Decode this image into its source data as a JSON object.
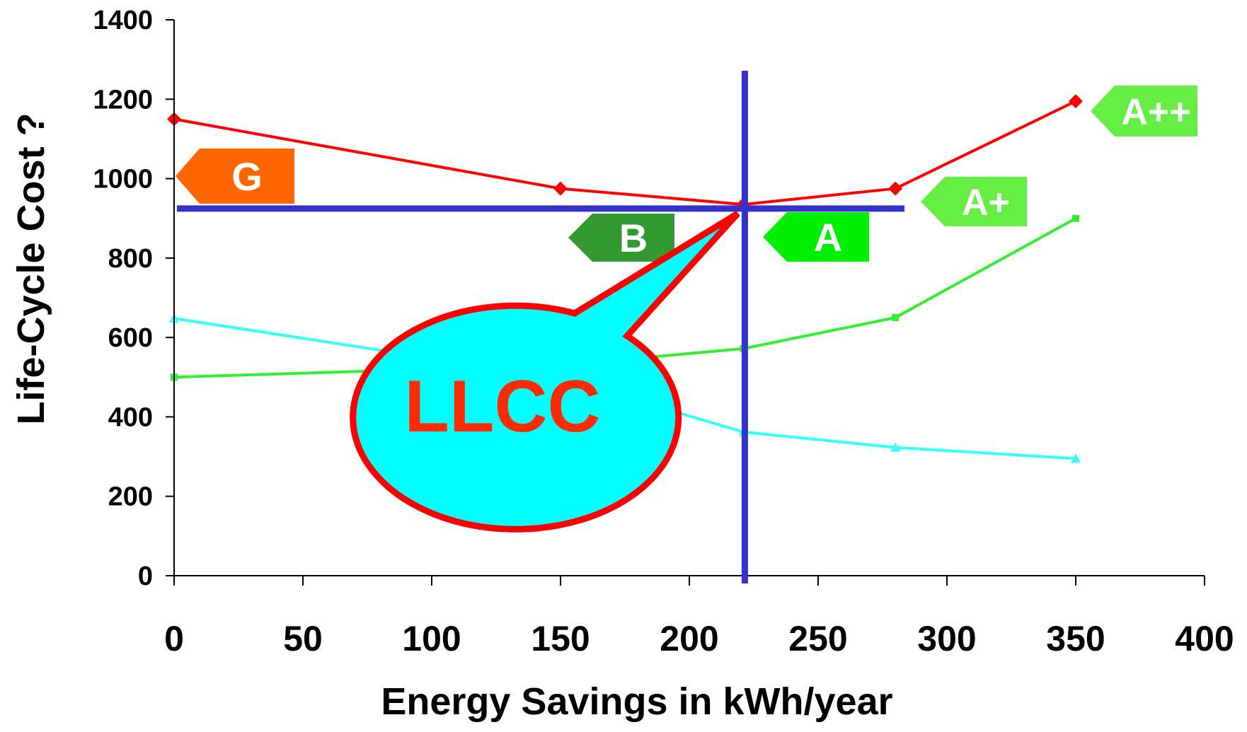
{
  "chart_data": {
    "type": "line",
    "xlabel": "Energy Savings in kWh/year",
    "ylabel": "Life-Cycle Cost ?",
    "xlim": [
      0,
      400
    ],
    "ylim": [
      0,
      1400
    ],
    "x_ticks": [
      0,
      50,
      100,
      150,
      200,
      250,
      300,
      350,
      400
    ],
    "y_ticks": [
      0,
      200,
      400,
      600,
      800,
      1000,
      1200,
      1400
    ],
    "grid": false,
    "legend": "none",
    "series": [
      {
        "color": "#ff0000",
        "marker": "diamond",
        "points": [
          [
            0,
            1150
          ],
          [
            150,
            975
          ],
          [
            221,
            935
          ],
          [
            280,
            975
          ],
          [
            350,
            1195
          ]
        ]
      },
      {
        "color": "#33ee33",
        "marker": "square",
        "points": [
          [
            0,
            500
          ],
          [
            150,
            530
          ],
          [
            221,
            572
          ],
          [
            280,
            650
          ],
          [
            350,
            900
          ]
        ]
      },
      {
        "color": "#33ffff",
        "marker": "triangle",
        "points": [
          [
            0,
            648
          ],
          [
            150,
            498
          ],
          [
            221,
            362
          ],
          [
            280,
            323
          ],
          [
            350,
            295
          ]
        ]
      }
    ],
    "annotations": {
      "llcc_point": {
        "x": 221,
        "y": 930,
        "color": "#3333cc"
      },
      "callout": {
        "text": "LLCC",
        "fill": "#00ffff",
        "stroke": "#ff0000",
        "text_color": "#ff2a00"
      },
      "energy_labels": [
        {
          "text": "G",
          "color": "#ff6600"
        },
        {
          "text": "B",
          "color": "#339933"
        },
        {
          "text": "A",
          "color": "#00ee00"
        },
        {
          "text": "A+",
          "color": "#66ee44"
        },
        {
          "text": "A++",
          "color": "#66ee44"
        }
      ]
    }
  }
}
